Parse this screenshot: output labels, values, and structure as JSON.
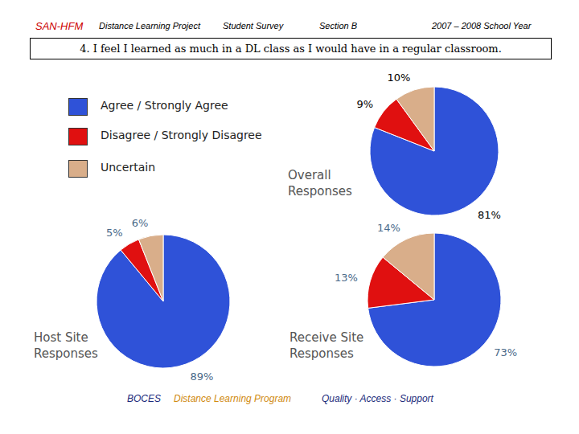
{
  "header": {
    "project_code": "SAN-HFM",
    "project": "Distance Learning Project",
    "survey": "Student Survey",
    "section": "Section B",
    "year": "2007 – 2008 School Year"
  },
  "question": "4. I feel I learned as much in a DL class as I would have in a regular classroom.",
  "chart_data": [
    {
      "type": "pie",
      "title": "Overall Responses",
      "categories": [
        "Agree / Strongly Agree",
        "Disagree / Strongly Disagree",
        "Uncertain"
      ],
      "values": [
        81,
        9,
        10
      ],
      "value_labels": [
        "81%",
        "9%",
        "10%"
      ],
      "colors": [
        "#2F52D8",
        "#E01010",
        "#D9AE8A"
      ],
      "data_labels": true,
      "legend": "upper left"
    },
    {
      "type": "pie",
      "title": "Host Site Responses",
      "categories": [
        "Agree / Strongly Agree",
        "Disagree / Strongly Disagree",
        "Uncertain"
      ],
      "values": [
        89,
        5,
        6
      ],
      "value_labels": [
        "89%",
        "5%",
        "6%"
      ],
      "colors": [
        "#2F52D8",
        "#E01010",
        "#D9AE8A"
      ],
      "data_labels": true
    },
    {
      "type": "pie",
      "title": "Receive Site Responses",
      "categories": [
        "Agree / Strongly Agree",
        "Disagree / Strongly Disagree",
        "Uncertain"
      ],
      "values": [
        73,
        13,
        14
      ],
      "value_labels": [
        "73%",
        "13%",
        "14%"
      ],
      "colors": [
        "#2F52D8",
        "#E01010",
        "#D9AE8A"
      ],
      "data_labels": true
    }
  ],
  "footer": {
    "org": "BOCES",
    "program": "Distance Learning Program",
    "tagline": "Quality · Access · Support"
  }
}
